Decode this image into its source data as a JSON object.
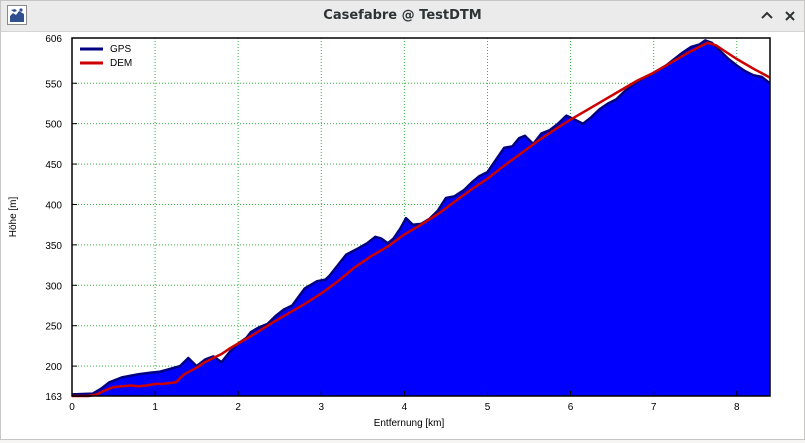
{
  "window": {
    "title": "Casefabre @ TestDTM"
  },
  "icons": {
    "app": "map-app-icon",
    "minimize": "chevron-up-icon",
    "close": "close-icon"
  },
  "colors": {
    "gps_fill": "#0000ff",
    "gps_line": "#000080",
    "dem_line": "#cc0000",
    "grid": "#3cb043"
  },
  "chart_data": {
    "type": "area",
    "xlabel": "Entfernung [km]",
    "ylabel": "Höhe [m]",
    "xlim": [
      0,
      8.4
    ],
    "ylim": [
      163,
      606
    ],
    "x_ticks": [
      0,
      1,
      2,
      3,
      4,
      5,
      6,
      7,
      8
    ],
    "y_ticks": [
      163,
      200,
      250,
      300,
      350,
      400,
      450,
      500,
      550,
      606
    ],
    "x_tick_labels": [
      "0",
      "1",
      "2",
      "3",
      "4",
      "5",
      "6",
      "7",
      "8"
    ],
    "y_tick_labels": [
      "163",
      "200",
      "250",
      "300",
      "350",
      "400",
      "450",
      "500",
      "550",
      "606"
    ],
    "grid": true,
    "legend_position": "top-left",
    "series": [
      {
        "name": "GPS",
        "x": [
          0,
          0.25,
          0.35,
          0.45,
          0.6,
          0.8,
          0.95,
          1.05,
          1.2,
          1.3,
          1.4,
          1.45,
          1.5,
          1.6,
          1.7,
          1.8,
          1.9,
          2.0,
          2.1,
          2.15,
          2.25,
          2.35,
          2.45,
          2.55,
          2.65,
          2.7,
          2.8,
          2.95,
          3.05,
          3.1,
          3.2,
          3.3,
          3.45,
          3.55,
          3.65,
          3.72,
          3.8,
          3.87,
          3.95,
          4.02,
          4.1,
          4.2,
          4.3,
          4.4,
          4.5,
          4.6,
          4.72,
          4.82,
          4.9,
          5.0,
          5.1,
          5.2,
          5.3,
          5.38,
          5.45,
          5.55,
          5.65,
          5.75,
          5.85,
          5.95,
          6.05,
          6.15,
          6.25,
          6.35,
          6.45,
          6.55,
          6.65,
          6.75,
          6.85,
          6.95,
          7.05,
          7.15,
          7.25,
          7.35,
          7.45,
          7.55,
          7.62,
          7.7,
          7.8,
          7.9,
          8.0,
          8.1,
          8.2,
          8.3,
          8.4
        ],
        "values": [
          165,
          166,
          172,
          180,
          186,
          190,
          192,
          193,
          197,
          200,
          210,
          205,
          200,
          208,
          212,
          205,
          218,
          228,
          235,
          242,
          248,
          252,
          262,
          270,
          275,
          282,
          296,
          305,
          307,
          312,
          325,
          338,
          346,
          352,
          360,
          358,
          352,
          358,
          370,
          383,
          375,
          376,
          382,
          392,
          408,
          410,
          418,
          428,
          435,
          440,
          455,
          470,
          472,
          482,
          485,
          475,
          488,
          492,
          500,
          510,
          505,
          500,
          508,
          518,
          525,
          530,
          540,
          548,
          555,
          560,
          566,
          572,
          580,
          588,
          595,
          598,
          603,
          600,
          590,
          580,
          572,
          565,
          560,
          558,
          550
        ]
      },
      {
        "name": "DEM",
        "x": [
          0,
          0.2,
          0.3,
          0.4,
          0.5,
          0.7,
          0.8,
          0.9,
          1.0,
          1.1,
          1.25,
          1.35,
          1.5,
          1.6,
          1.7,
          1.8,
          1.9,
          2.0,
          2.2,
          2.4,
          2.6,
          2.8,
          3.0,
          3.2,
          3.4,
          3.6,
          3.8,
          4.0,
          4.2,
          4.4,
          4.6,
          4.8,
          5.0,
          5.2,
          5.4,
          5.6,
          5.8,
          6.0,
          6.2,
          6.4,
          6.6,
          6.8,
          7.0,
          7.2,
          7.4,
          7.55,
          7.65,
          7.75,
          7.85,
          8.0,
          8.2,
          8.4
        ],
        "values": [
          163,
          163,
          165,
          170,
          174,
          176,
          175,
          176,
          178,
          178,
          180,
          190,
          198,
          205,
          210,
          215,
          222,
          228,
          240,
          253,
          265,
          277,
          290,
          305,
          322,
          336,
          348,
          363,
          375,
          388,
          403,
          418,
          432,
          448,
          463,
          478,
          492,
          505,
          517,
          529,
          541,
          553,
          563,
          575,
          587,
          595,
          600,
          597,
          590,
          580,
          568,
          557
        ]
      }
    ]
  }
}
